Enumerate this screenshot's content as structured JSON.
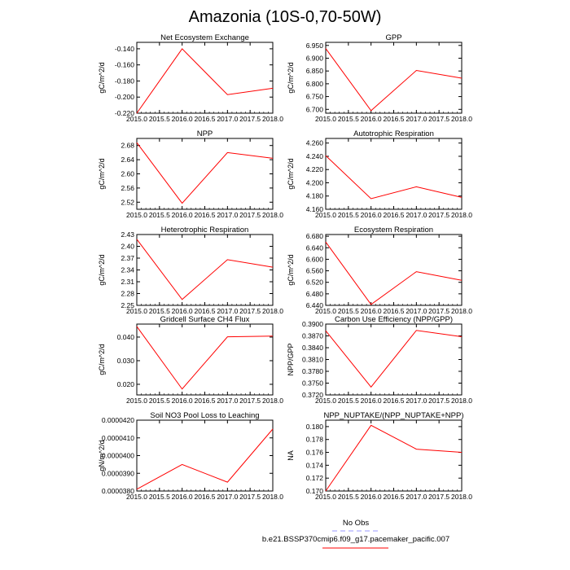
{
  "title": "Amazonia (10S-0,70-50W)",
  "legend": {
    "entries": [
      {
        "label": "No Obs",
        "color": "#9999ff",
        "dashed": true
      },
      {
        "label": "b.e21.BSSP370cmip6.f09_g17.pacemaker_pacific.007",
        "color": "#ff0000",
        "dashed": false
      }
    ]
  },
  "chart_data": [
    {
      "type": "line",
      "title": "Net Ecosystem Exchange",
      "ylabel": "gC/m^2/d",
      "x": [
        2015,
        2016,
        2017,
        2018
      ],
      "xlim": [
        2015,
        2018
      ],
      "xticks": [
        "2015.0",
        "2015.5",
        "2016.0",
        "2016.5",
        "2017.0",
        "2017.5",
        "2018.0"
      ],
      "ylim": [
        -0.22,
        -0.132
      ],
      "yticks": [
        "-0.140",
        "-0.160",
        "-0.180",
        "-0.200",
        "-0.220"
      ],
      "series": [
        {
          "color": "#ff0000",
          "values": [
            -0.22,
            -0.14,
            -0.197,
            -0.189
          ]
        }
      ]
    },
    {
      "type": "line",
      "title": "GPP",
      "ylabel": "gC/m^2/d",
      "x": [
        2015,
        2016,
        2017,
        2018
      ],
      "xlim": [
        2015,
        2018
      ],
      "xticks": [
        "2015.0",
        "2015.5",
        "2016.0",
        "2016.5",
        "2017.0",
        "2017.5",
        "2018.0"
      ],
      "ylim": [
        6.685,
        6.962
      ],
      "yticks": [
        "6.950",
        "6.900",
        "6.850",
        "6.800",
        "6.750",
        "6.700"
      ],
      "series": [
        {
          "color": "#ff0000",
          "values": [
            6.938,
            6.695,
            6.852,
            6.822
          ]
        }
      ]
    },
    {
      "type": "line",
      "title": "NPP",
      "ylabel": "gC/m^2/d",
      "x": [
        2015,
        2016,
        2017,
        2018
      ],
      "xlim": [
        2015,
        2018
      ],
      "xticks": [
        "2015.0",
        "2015.5",
        "2016.0",
        "2016.5",
        "2017.0",
        "2017.5",
        "2018.0"
      ],
      "ylim": [
        2.5,
        2.7
      ],
      "yticks": [
        "2.68",
        "2.64",
        "2.60",
        "2.56",
        "2.52"
      ],
      "series": [
        {
          "color": "#ff0000",
          "values": [
            2.688,
            2.517,
            2.66,
            2.644
          ]
        }
      ]
    },
    {
      "type": "line",
      "title": "Autotrophic Respiration",
      "ylabel": "gC/m^2/d",
      "x": [
        2015,
        2016,
        2017,
        2018
      ],
      "xlim": [
        2015,
        2018
      ],
      "xticks": [
        "2015.0",
        "2015.5",
        "2016.0",
        "2016.5",
        "2017.0",
        "2017.5",
        "2018.0"
      ],
      "ylim": [
        4.16,
        4.267
      ],
      "yticks": [
        "4.260",
        "4.240",
        "4.220",
        "4.200",
        "4.180",
        "4.160"
      ],
      "series": [
        {
          "color": "#ff0000",
          "values": [
            4.241,
            4.176,
            4.194,
            4.178
          ]
        }
      ]
    },
    {
      "type": "line",
      "title": "Heterotrophic Respiration",
      "ylabel": "gC/m^2/d",
      "x": [
        2015,
        2016,
        2017,
        2018
      ],
      "xlim": [
        2015,
        2018
      ],
      "xticks": [
        "2015.0",
        "2015.5",
        "2016.0",
        "2016.5",
        "2017.0",
        "2017.5",
        "2018.0"
      ],
      "ylim": [
        2.25,
        2.43
      ],
      "yticks": [
        "2.43",
        "2.40",
        "2.37",
        "2.34",
        "2.31",
        "2.28",
        "2.25"
      ],
      "series": [
        {
          "color": "#ff0000",
          "values": [
            2.418,
            2.265,
            2.366,
            2.347
          ]
        }
      ]
    },
    {
      "type": "line",
      "title": "Ecosystem Respiration",
      "ylabel": "gC/m^2/d",
      "x": [
        2015,
        2016,
        2017,
        2018
      ],
      "xlim": [
        2015,
        2018
      ],
      "xticks": [
        "2015.0",
        "2015.5",
        "2016.0",
        "2016.5",
        "2017.0",
        "2017.5",
        "2018.0"
      ],
      "ylim": [
        6.44,
        6.686
      ],
      "yticks": [
        "6.680",
        "6.640",
        "6.600",
        "6.560",
        "6.520",
        "6.480",
        "6.440"
      ],
      "series": [
        {
          "color": "#ff0000",
          "values": [
            6.66,
            6.443,
            6.557,
            6.527
          ]
        }
      ]
    },
    {
      "type": "line",
      "title": "Gridcell Surface CH4 Flux",
      "ylabel": "gC/m^2/d",
      "x": [
        2015,
        2016,
        2017,
        2018
      ],
      "xlim": [
        2015,
        2018
      ],
      "xticks": [
        "2015.0",
        "2015.5",
        "2016.0",
        "2016.5",
        "2017.0",
        "2017.5",
        "2018.0"
      ],
      "ylim": [
        0.0155,
        0.0455
      ],
      "yticks": [
        "0.040",
        "0.030",
        "0.020"
      ],
      "series": [
        {
          "color": "#ff0000",
          "values": [
            0.0445,
            0.018,
            0.0401,
            0.0404
          ]
        }
      ]
    },
    {
      "type": "line",
      "title": "Carbon Use Efficiency (NPP/GPP)",
      "ylabel": "NPP/GPP",
      "x": [
        2015,
        2016,
        2017,
        2018
      ],
      "xlim": [
        2015,
        2018
      ],
      "xticks": [
        "2015.0",
        "2015.5",
        "2016.0",
        "2016.5",
        "2017.0",
        "2017.5",
        "2018.0"
      ],
      "ylim": [
        0.372,
        0.39
      ],
      "yticks": [
        "0.3900",
        "0.3870",
        "0.3840",
        "0.3810",
        "0.3780",
        "0.3750",
        "0.3720"
      ],
      "series": [
        {
          "color": "#ff0000",
          "values": [
            0.3883,
            0.374,
            0.3884,
            0.3868
          ]
        }
      ]
    },
    {
      "type": "line",
      "title": "Soil NO3 Pool Loss to Leaching",
      "ylabel": "gN/m^2/d",
      "x": [
        2015,
        2016,
        2017,
        2018
      ],
      "xlim": [
        2015,
        2018
      ],
      "xticks": [
        "2015.0",
        "2015.5",
        "2016.0",
        "2016.5",
        "2017.0",
        "2017.5",
        "2018.0"
      ],
      "ylim": [
        3.8e-05,
        4.2e-05
      ],
      "yticks": [
        "0.0000420",
        "0.0000410",
        "0.0000400",
        "0.0000390",
        "0.0000380"
      ],
      "series": [
        {
          "color": "#ff0000",
          "values": [
            3.81e-05,
            3.95e-05,
            3.85e-05,
            4.15e-05
          ]
        }
      ]
    },
    {
      "type": "line",
      "title": "NPP_NUPTAKE/(NPP_NUPTAKE+NPP)",
      "ylabel": "NA",
      "x": [
        2015,
        2016,
        2017,
        2018
      ],
      "xlim": [
        2015,
        2018
      ],
      "xticks": [
        "2015.0",
        "2015.5",
        "2016.0",
        "2016.5",
        "2017.0",
        "2017.5",
        "2018.0"
      ],
      "ylim": [
        0.17,
        0.181
      ],
      "yticks": [
        "0.180",
        "0.178",
        "0.176",
        "0.174",
        "0.172",
        "0.170"
      ],
      "series": [
        {
          "color": "#ff0000",
          "values": [
            0.17,
            0.1802,
            0.1765,
            0.176
          ]
        }
      ]
    }
  ]
}
